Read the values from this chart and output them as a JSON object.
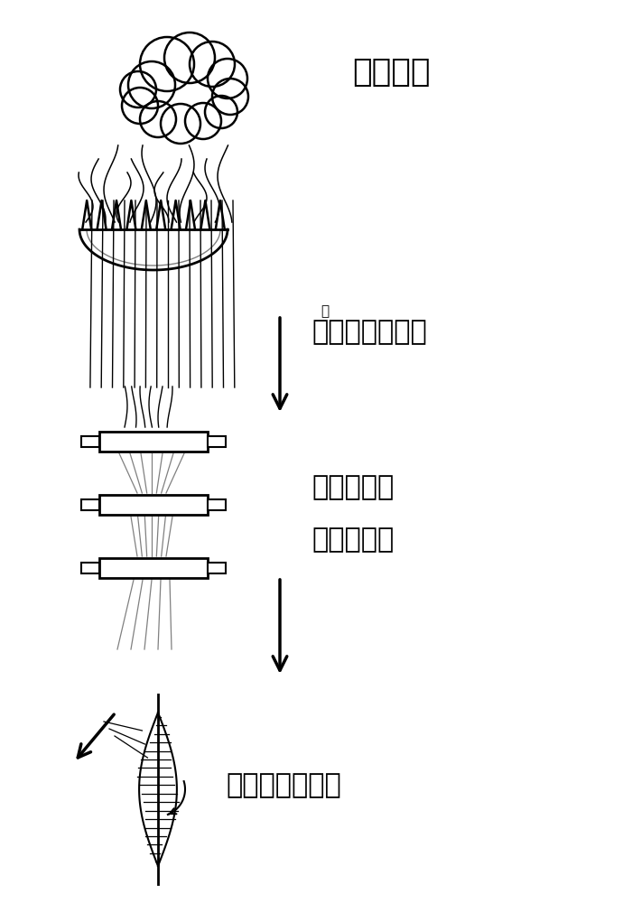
{
  "bg_color": "#ffffff",
  "text_color": "#000000",
  "label1": "繊維の塊",
  "label2_ruby": "す",
  "label2": "梳く（平行に）",
  "label3": "引き伸ばし",
  "label3b": "（均一化）",
  "label4": "撚り・巻き取り",
  "figsize": [
    7.0,
    10.12
  ],
  "dpi": 100
}
